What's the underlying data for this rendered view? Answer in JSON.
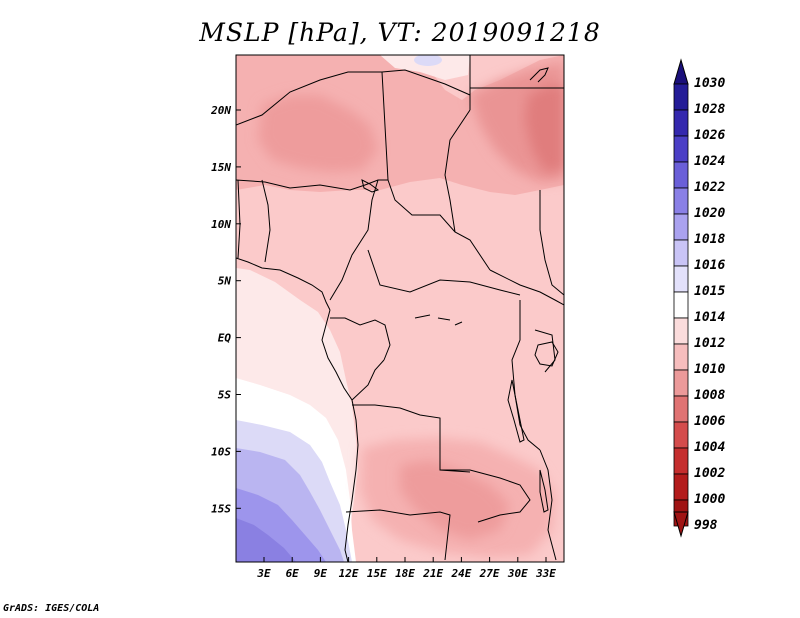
{
  "title": "MSLP [hPa], VT: 2019091218",
  "credit": "GrADS: IGES/COLA",
  "lat_labels": [
    "20N",
    "15N",
    "10N",
    "5N",
    "EQ",
    "5S",
    "10S",
    "15S"
  ],
  "lon_labels": [
    "3E",
    "6E",
    "9E",
    "12E",
    "15E",
    "18E",
    "21E",
    "24E",
    "27E",
    "30E",
    "33E"
  ],
  "colorbar": {
    "levels": [
      "1030",
      "1028",
      "1026",
      "1024",
      "1022",
      "1020",
      "1018",
      "1016",
      "1015",
      "1014",
      "1012",
      "1010",
      "1008",
      "1006",
      "1004",
      "1002",
      "1000",
      "998"
    ],
    "colors": [
      "#1a0f7a",
      "#241c97",
      "#3428ae",
      "#4b3fc6",
      "#6a5fd8",
      "#8a80e6",
      "#aaa2ef",
      "#c9c4f6",
      "#e3e1fb",
      "#ffffff",
      "#fbdcdc",
      "#f6bdbd",
      "#ec9a9a",
      "#e07373",
      "#d44c4c",
      "#c52e2e",
      "#b31c1c",
      "#a01414"
    ]
  },
  "map": {
    "field": "MSLP",
    "units": "hPa",
    "valid_time": "2019091218",
    "lat_range": [
      -19,
      25
    ],
    "lon_range": [
      0,
      35
    ]
  }
}
